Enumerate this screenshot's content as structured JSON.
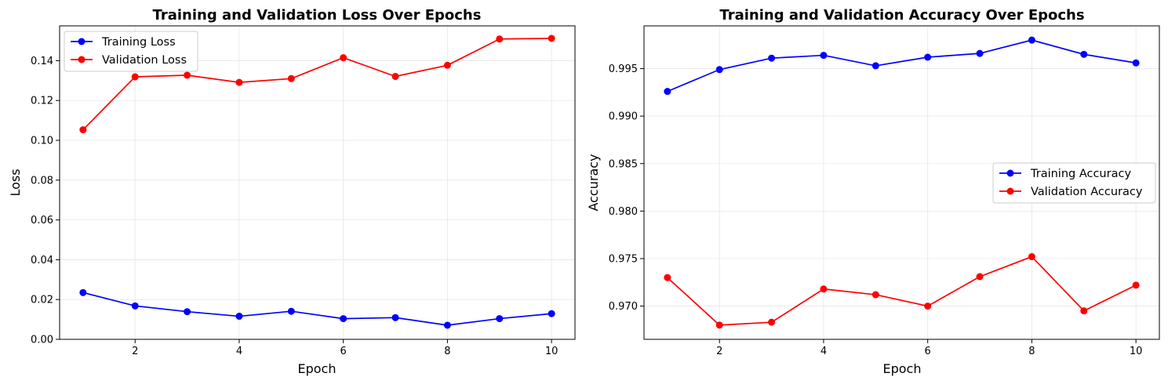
{
  "chart_data": [
    {
      "type": "line",
      "title": "Training and Validation Loss Over Epochs",
      "xlabel": "Epoch",
      "ylabel": "Loss",
      "x": [
        1,
        2,
        3,
        4,
        5,
        6,
        7,
        8,
        9,
        10
      ],
      "xlim": [
        0.55,
        10.45
      ],
      "ylim": [
        0,
        0.1575
      ],
      "xticks": [
        2,
        4,
        6,
        8,
        10
      ],
      "xtick_labels": [
        "2",
        "4",
        "6",
        "8",
        "10"
      ],
      "yticks": [
        0,
        0.02,
        0.04,
        0.06,
        0.08,
        0.1,
        0.12,
        0.14
      ],
      "ytick_labels": [
        "0.00",
        "0.02",
        "0.04",
        "0.06",
        "0.08",
        "0.10",
        "0.12",
        "0.14"
      ],
      "grid": true,
      "legend_position": "upper-left",
      "series": [
        {
          "name": "Training Loss",
          "color": "#0000ff",
          "marker": "circle",
          "values": [
            0.0235,
            0.0168,
            0.0139,
            0.0116,
            0.0141,
            0.0104,
            0.0109,
            0.0071,
            0.0104,
            0.0129
          ]
        },
        {
          "name": "Validation Loss",
          "color": "#ff0000",
          "marker": "circle",
          "values": [
            0.1053,
            0.1319,
            0.1327,
            0.1291,
            0.131,
            0.1415,
            0.1321,
            0.1377,
            0.1509,
            0.1512
          ]
        }
      ]
    },
    {
      "type": "line",
      "title": "Training and Validation Accuracy Over Epochs",
      "xlabel": "Epoch",
      "ylabel": "Accuracy",
      "x": [
        1,
        2,
        3,
        4,
        5,
        6,
        7,
        8,
        9,
        10
      ],
      "xlim": [
        0.55,
        10.45
      ],
      "ylim": [
        0.9665,
        0.9995
      ],
      "xticks": [
        2,
        4,
        6,
        8,
        10
      ],
      "xtick_labels": [
        "2",
        "4",
        "6",
        "8",
        "10"
      ],
      "yticks": [
        0.97,
        0.975,
        0.98,
        0.985,
        0.99,
        0.995
      ],
      "ytick_labels": [
        "0.970",
        "0.975",
        "0.980",
        "0.985",
        "0.990",
        "0.995"
      ],
      "grid": true,
      "legend_position": "center-right",
      "series": [
        {
          "name": "Training Accuracy",
          "color": "#0000ff",
          "marker": "circle",
          "values": [
            0.9926,
            0.9949,
            0.9961,
            0.9964,
            0.9953,
            0.9962,
            0.9966,
            0.998,
            0.9965,
            0.9956
          ]
        },
        {
          "name": "Validation Accuracy",
          "color": "#ff0000",
          "marker": "circle",
          "values": [
            0.973,
            0.968,
            0.9683,
            0.9718,
            0.9712,
            0.97,
            0.9731,
            0.9752,
            0.9695,
            0.9722
          ]
        }
      ]
    }
  ]
}
